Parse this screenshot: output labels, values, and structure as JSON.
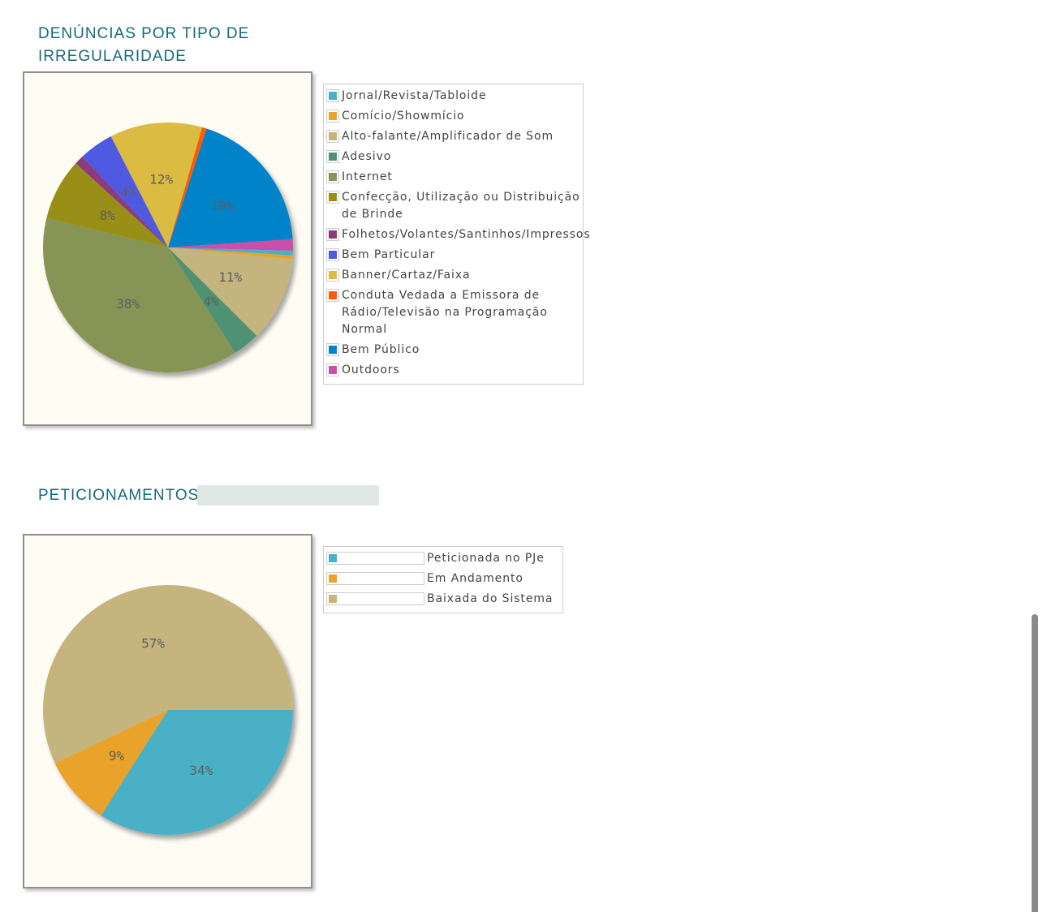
{
  "sections": [
    {
      "title": "DENÚNCIAS POR TIPO DE IRREGULARIDADE"
    },
    {
      "title": "PETICIONAMENTOS"
    }
  ],
  "chart_data": [
    {
      "type": "pie",
      "title": "DENÚNCIAS POR TIPO DE IRREGULARIDADE",
      "legend_position": "right",
      "slices": [
        {
          "label": "Bem Público",
          "value": 19,
          "display": "19%",
          "color": "#0283c9"
        },
        {
          "label": "Outdoors",
          "value": 1.5,
          "display": "",
          "color": "#c94faa"
        },
        {
          "label": "Jornal/Revista/Tabloide",
          "value": 0.6,
          "display": "",
          "color": "#4ab0c6"
        },
        {
          "label": "Comício/Showmício",
          "value": 0.5,
          "display": "",
          "color": "#eaa32b"
        },
        {
          "label": "Alto-falante/Amplificador de Som",
          "value": 11,
          "display": "11%",
          "color": "#c6b47f"
        },
        {
          "label": "Adesivo",
          "value": 3.5,
          "display": "4%",
          "color": "#4f9173"
        },
        {
          "label": "Internet",
          "value": 38,
          "display": "38%",
          "color": "#869556"
        },
        {
          "label": "Confecção, Utilização ou Distribuição de Brinde",
          "value": 8,
          "display": "8%",
          "color": "#9a8f15"
        },
        {
          "label": "Folhetos/Volantes/Santinhos/Impressos",
          "value": 1.2,
          "display": "",
          "color": "#8c3a7c"
        },
        {
          "label": "Bem Particular",
          "value": 4.5,
          "display": "4%",
          "color": "#4f5ae3"
        },
        {
          "label": "Banner/Cartaz/Faixa",
          "value": 12,
          "display": "12%",
          "color": "#dcbb43"
        },
        {
          "label": "Conduta Vedada a Emissora de Rádio/Televisão na Programação Normal",
          "value": 0.6,
          "display": "",
          "color": "#ff5a05"
        }
      ],
      "legend": [
        {
          "label": "Jornal/Revista/Tabloide",
          "color": "#4ab0c6"
        },
        {
          "label": "Comício/Showmício",
          "color": "#eaa32b"
        },
        {
          "label": "Alto-falante/Amplificador de Som",
          "color": "#c6b47f"
        },
        {
          "label": "Adesivo",
          "color": "#4f9173"
        },
        {
          "label": "Internet",
          "color": "#869556"
        },
        {
          "label": "Confecção, Utilização ou Distribuição de Brinde",
          "color": "#9a8f15"
        },
        {
          "label": "Folhetos/Volantes/Santinhos/Impressos",
          "color": "#8c3a7c"
        },
        {
          "label": "Bem Particular",
          "color": "#4f5ae3"
        },
        {
          "label": "Banner/Cartaz/Faixa",
          "color": "#dcbb43"
        },
        {
          "label": "Conduta Vedada a Emissora de Rádio/Televisão na Programação Normal",
          "color": "#ff5a05"
        },
        {
          "label": "Bem Público",
          "color": "#0283c9"
        },
        {
          "label": "Outdoors",
          "color": "#c94faa"
        }
      ]
    },
    {
      "type": "pie",
      "title": "PETICIONAMENTOS",
      "legend_position": "right",
      "slices": [
        {
          "label": "Peticionada no PJe",
          "value": 34,
          "display": "34%",
          "color": "#4ab0c6"
        },
        {
          "label": "Em Andamento",
          "value": 9,
          "display": "9%",
          "color": "#eaa32b"
        },
        {
          "label": "Baixada do Sistema",
          "value": 57,
          "display": "57%",
          "color": "#c6b47f"
        }
      ],
      "legend": [
        {
          "label": "Peticionada no PJe",
          "color": "#4ab0c6"
        },
        {
          "label": "Em Andamento",
          "color": "#eaa32b"
        },
        {
          "label": "Baixada do Sistema",
          "color": "#c6b47f"
        }
      ]
    }
  ]
}
